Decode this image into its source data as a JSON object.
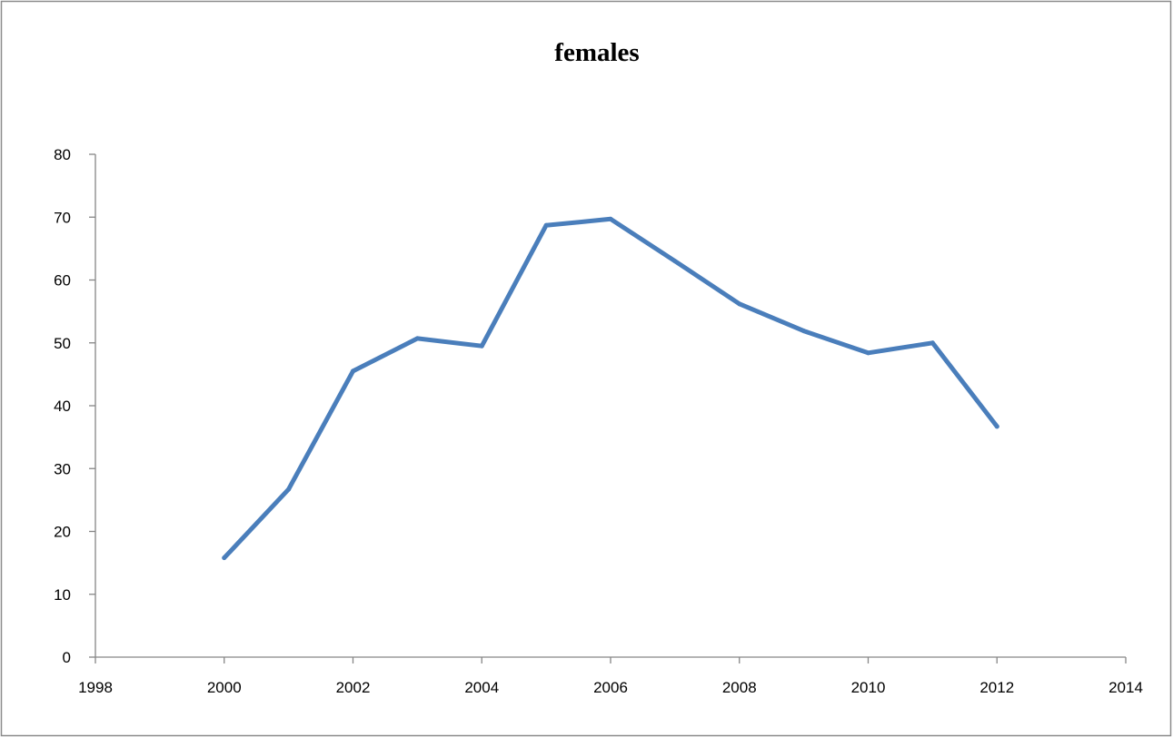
{
  "chart_data": {
    "type": "scatter",
    "title": "females",
    "xlabel": "",
    "ylabel": "",
    "xlim": [
      1998,
      2014
    ],
    "ylim": [
      0,
      80
    ],
    "x_ticks": [
      "1998",
      "2000",
      "2002",
      "2004",
      "2006",
      "2008",
      "2010",
      "2012",
      "2014"
    ],
    "y_ticks": [
      "0",
      "10",
      "20",
      "30",
      "40",
      "50",
      "60",
      "70",
      "80"
    ],
    "grid": false,
    "legend": "none",
    "series": [
      {
        "color": "#4a7ebb",
        "x": [
          2000,
          2001,
          2002,
          2003,
          2004,
          2005,
          2006,
          2007,
          2008,
          2009,
          2010,
          2011,
          2012
        ],
        "y": [
          15.8,
          26.7,
          45.5,
          50.7,
          49.5,
          68.7,
          69.7,
          63.0,
          56.2,
          51.9,
          48.4,
          50.0,
          36.7
        ]
      }
    ]
  }
}
